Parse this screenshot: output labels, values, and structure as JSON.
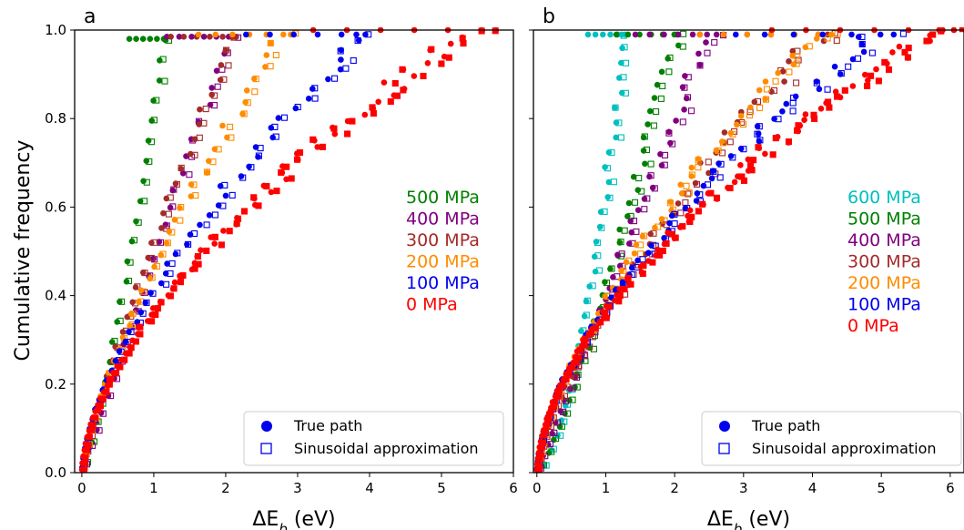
{
  "ylabel": "Cumulative frequency",
  "xlabel_prefix": "ΔE",
  "xlabel_sub": "b",
  "xlabel_suffix": " (eV)",
  "legend": {
    "filled_label": "True path",
    "open_label": "Sinusoidal approximation",
    "marker_color": "#0000ee"
  },
  "chart_data": [
    {
      "type": "scatter",
      "panel_label": "a",
      "xlim": [
        -0.1,
        6
      ],
      "ylim": [
        0,
        1
      ],
      "xticks": [
        0,
        1,
        2,
        3,
        4,
        5,
        6
      ],
      "yticks": [
        0.0,
        0.2,
        0.4,
        0.6,
        0.8,
        1.0
      ],
      "series": [
        {
          "name": "500 MPa",
          "color": "#008000",
          "xmax": 1.2,
          "n": 22,
          "sat": 0.98,
          "curv": 0.8
        },
        {
          "name": "400 MPa",
          "color": "#800080",
          "xmax": 2.15,
          "n": 26,
          "sat": 0.985,
          "curv": 1.0
        },
        {
          "name": "300 MPa",
          "color": "#a52a2a",
          "xmax": 2.25,
          "n": 30,
          "sat": 0.985,
          "curv": 1.2
        },
        {
          "name": "200 MPa",
          "color": "#ff8c00",
          "xmax": 2.95,
          "n": 38,
          "sat": 0.99,
          "curv": 1.35
        },
        {
          "name": "100 MPa",
          "color": "#0000ee",
          "xmax": 4.15,
          "n": 46,
          "sat": 0.99,
          "curv": 1.55
        },
        {
          "name": "0 MPa",
          "color": "#ff0000",
          "xmax": 5.85,
          "n": 70,
          "sat": 1.0,
          "curv": 1.7
        }
      ]
    },
    {
      "type": "scatter",
      "panel_label": "b",
      "xlim": [
        -0.05,
        6.2
      ],
      "ylim": [
        0,
        1
      ],
      "xticks": [
        0,
        1,
        2,
        3,
        4,
        5,
        6
      ],
      "yticks": [
        0.0,
        0.2,
        0.4,
        0.6,
        0.8,
        1.0
      ],
      "series": [
        {
          "name": "600 MPa",
          "color": "#00bfbf",
          "xmax": 1.35,
          "n": 30,
          "sat": 0.99,
          "curv": 0.6
        },
        {
          "name": "500 MPa",
          "color": "#008000",
          "xmax": 2.1,
          "n": 34,
          "sat": 0.99,
          "curv": 0.8
        },
        {
          "name": "400 MPa",
          "color": "#800080",
          "xmax": 2.6,
          "n": 40,
          "sat": 0.99,
          "curv": 1.0
        },
        {
          "name": "300 MPa",
          "color": "#a52a2a",
          "xmax": 4.3,
          "n": 44,
          "sat": 0.99,
          "curv": 1.4
        },
        {
          "name": "200 MPa",
          "color": "#ff8c00",
          "xmax": 4.3,
          "n": 52,
          "sat": 0.99,
          "curv": 1.5
        },
        {
          "name": "100 MPa",
          "color": "#0000ee",
          "xmax": 5.25,
          "n": 60,
          "sat": 0.99,
          "curv": 1.65
        },
        {
          "name": "0 MPa",
          "color": "#ff0000",
          "xmax": 6.2,
          "n": 80,
          "sat": 1.0,
          "curv": 1.75
        }
      ]
    }
  ]
}
